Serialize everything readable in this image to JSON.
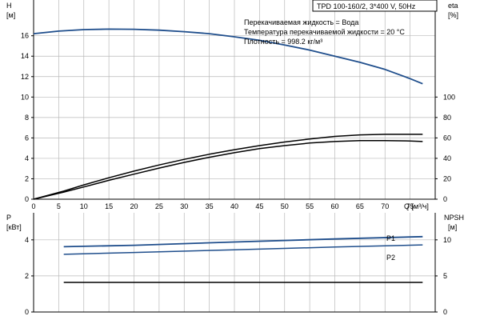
{
  "header": {
    "title": "TPD 100-160/2, 3*400 V, 50Hz",
    "info": [
      "Перекачиваемая жидкость = Вода",
      "Температура перекачиваемой жидкости = 20 °C",
      "Плотность = 998.2 кг/м³"
    ]
  },
  "colors": {
    "blue": "#1f4e8c",
    "black": "#000000",
    "grid": "#b9b9b9"
  },
  "chart_data": [
    {
      "type": "line",
      "name": "upper",
      "x_ticks": [
        0,
        5,
        10,
        15,
        20,
        25,
        30,
        35,
        40,
        45,
        50,
        55,
        60,
        65,
        70,
        75
      ],
      "x_label": "Q [м³/ч]",
      "xlim": [
        0,
        80
      ],
      "y_left_label": [
        "H",
        "[м]"
      ],
      "y_left_ticks": [
        0,
        2,
        4,
        6,
        8,
        10,
        12,
        14,
        16
      ],
      "y_left_lim": [
        0,
        19.5
      ],
      "y_right_label": [
        "eta",
        "[%]"
      ],
      "y_right_ticks": [
        0,
        20,
        40,
        60,
        80,
        100
      ],
      "series": [
        {
          "axis": "left",
          "color": "#1f4e8c",
          "x": [
            0,
            5,
            10,
            15,
            20,
            25,
            30,
            35,
            40,
            45,
            50,
            55,
            60,
            65,
            70,
            75,
            77.5
          ],
          "y": [
            16.2,
            16.45,
            16.6,
            16.65,
            16.63,
            16.55,
            16.4,
            16.2,
            15.9,
            15.55,
            15.1,
            14.6,
            14.0,
            13.4,
            12.7,
            11.8,
            11.3
          ]
        },
        {
          "axis": "right",
          "color": "#000000",
          "x": [
            0,
            6,
            10,
            15,
            20,
            25,
            30,
            35,
            40,
            45,
            50,
            55,
            60,
            65,
            70,
            75,
            77.5
          ],
          "y": [
            0,
            8,
            14,
            21,
            27.5,
            33.5,
            39,
            44,
            48.5,
            52.5,
            56,
            59,
            61.5,
            63,
            63.5,
            63.5,
            63.5
          ]
        },
        {
          "axis": "right",
          "color": "#000000",
          "x": [
            0,
            6,
            10,
            15,
            20,
            25,
            30,
            35,
            40,
            45,
            50,
            55,
            60,
            65,
            70,
            75,
            77.5
          ],
          "y": [
            0,
            7,
            12,
            18.5,
            24.5,
            30.5,
            36,
            41,
            45.5,
            49.5,
            52.5,
            55,
            56.5,
            57.3,
            57.3,
            57,
            56.5
          ]
        }
      ]
    },
    {
      "type": "line",
      "name": "lower",
      "xlim": [
        0,
        80
      ],
      "y_left_label": [
        "P",
        "[кВт]"
      ],
      "y_left_ticks": [
        0,
        2,
        4
      ],
      "y_left_lim": [
        0,
        5.5
      ],
      "y_right_label": [
        "NPSH",
        "[м]"
      ],
      "y_right_ticks": [
        0,
        5,
        10
      ],
      "series": [
        {
          "name": "P1",
          "axis": "left",
          "color": "#1f4e8c",
          "x": [
            6,
            20,
            40,
            60,
            77.5
          ],
          "y": [
            3.62,
            3.7,
            3.88,
            4.05,
            4.18
          ]
        },
        {
          "name": "P2",
          "axis": "left",
          "color": "#1f4e8c",
          "x": [
            6,
            20,
            40,
            60,
            77.5
          ],
          "y": [
            3.2,
            3.3,
            3.45,
            3.6,
            3.72
          ]
        },
        {
          "axis": "right",
          "color": "#000000",
          "x": [
            6,
            20,
            40,
            60,
            77.5
          ],
          "y": [
            4.1,
            4.1,
            4.1,
            4.1,
            4.1
          ]
        }
      ]
    }
  ]
}
